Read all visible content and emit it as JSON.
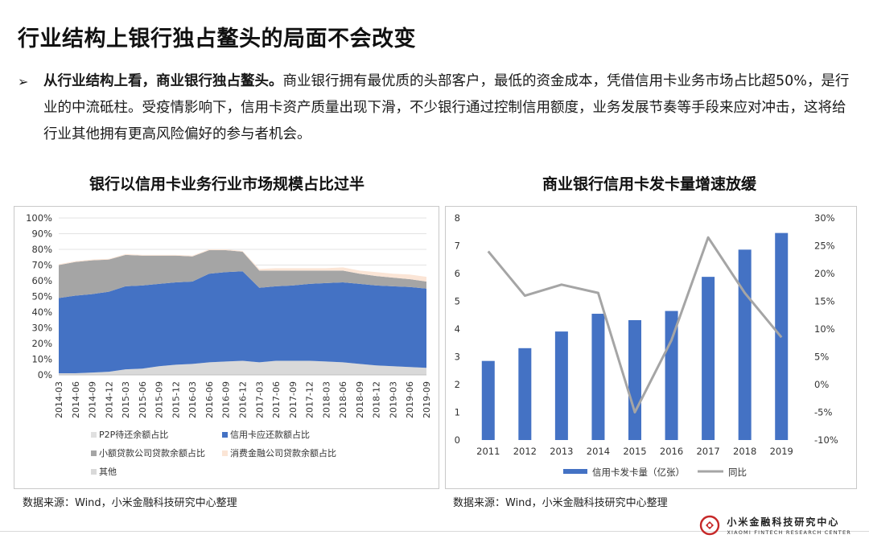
{
  "header": {
    "title": "行业结构上银行独占鳌头的局面不会改变"
  },
  "bullet": {
    "arrow": "➢",
    "lead": "从行业结构上看，商业银行独占鳌头。",
    "body": "商业银行拥有最优质的头部客户，最低的资金成本，凭借信用卡业务市场占比超50%，是行业的中流砥柱。受疫情影响下，信用卡资产质量出现下滑，不少银行通过控制信用额度，业务发展节奏等手段来应对冲击，这将给行业其他拥有更高风险偏好的参与者机会。"
  },
  "footer": {
    "brand_cn": "小米金融科技研究中心",
    "brand_en": "XIAOMI FINTECH RESEARCH CENTER"
  },
  "chart_data": [
    {
      "type": "area",
      "stacked": true,
      "title": "银行以信用卡业务行业市场规模占比过半",
      "source": "数据来源：Wind，小米金融科技研究中心整理",
      "categories": [
        "2014-03",
        "2014-06",
        "2014-09",
        "2014-12",
        "2015-03",
        "2015-06",
        "2015-09",
        "2015-12",
        "2016-03",
        "2016-06",
        "2016-09",
        "2016-12",
        "2017-03",
        "2017-06",
        "2017-09",
        "2017-12",
        "2018-03",
        "2018-06",
        "2018-09",
        "2018-12",
        "2019-03",
        "2019-06",
        "2019-09"
      ],
      "yticks": [
        "0%",
        "10%",
        "20%",
        "30%",
        "40%",
        "50%",
        "60%",
        "70%",
        "80%",
        "90%",
        "100%"
      ],
      "ylim": [
        0,
        100
      ],
      "grid": true,
      "legend_position": "bottom",
      "series": [
        {
          "name": "其他",
          "color": "#d9d9d9",
          "values": [
            1,
            1,
            1.5,
            2,
            3.5,
            4,
            5.5,
            6.5,
            7,
            8,
            8.5,
            9,
            8,
            9,
            9,
            9,
            8.5,
            8,
            7,
            6,
            5.5,
            5,
            4.5
          ]
        },
        {
          "name": "信用卡应还款额占比",
          "color": "#4472c4",
          "values": [
            48,
            49.5,
            50,
            51,
            53,
            53,
            52.5,
            52.5,
            52.5,
            56.5,
            57,
            57,
            47.5,
            47.5,
            48,
            49,
            50,
            51,
            51,
            51,
            51,
            51,
            50.5
          ]
        },
        {
          "name": "小额贷款公司贷款余额占比",
          "color": "#a5a5a5",
          "values": [
            21,
            21.5,
            21.5,
            20.5,
            20,
            19,
            18,
            17,
            16,
            15,
            14,
            12.5,
            11,
            10,
            9.5,
            8.5,
            8,
            7.5,
            6.5,
            6,
            5.5,
            5,
            4.5
          ]
        },
        {
          "name": "消费金融公司贷款余额占比",
          "color": "#fbe5d6",
          "values": [
            0.5,
            0.5,
            0.5,
            0.5,
            0.5,
            0.5,
            0.5,
            0.5,
            0.5,
            0.5,
            0.5,
            0.5,
            1,
            1.5,
            1.5,
            1.5,
            1.5,
            2,
            2,
            2.5,
            2.5,
            3,
            3
          ]
        },
        {
          "name": "P2P待还余额占比",
          "color": "#e0e0e0",
          "values": [
            0,
            0,
            0,
            0,
            0,
            0,
            0,
            0,
            0,
            0,
            0,
            0,
            0,
            0,
            0,
            0,
            0,
            0,
            0,
            0,
            0,
            0,
            0
          ]
        }
      ],
      "legend_order": [
        "P2P待还余额占比",
        "信用卡应还款额占比",
        "小额贷款公司贷款余额占比",
        "消费金融公司贷款余额占比",
        "其他"
      ]
    },
    {
      "type": "bar",
      "combo": true,
      "title": "商业银行信用卡发卡量增速放缓",
      "source": "数据来源：Wind，小米金融科技研究中心整理",
      "categories": [
        "2011",
        "2012",
        "2013",
        "2014",
        "2015",
        "2016",
        "2017",
        "2018",
        "2019"
      ],
      "ylim": [
        0,
        8
      ],
      "yticks": [
        "0",
        "1",
        "2",
        "3",
        "4",
        "5",
        "6",
        "7",
        "8"
      ],
      "y2lim": [
        -10,
        30
      ],
      "y2ticks": [
        "-10%",
        "-5%",
        "0%",
        "5%",
        "10%",
        "15%",
        "20%",
        "25%",
        "30%"
      ],
      "legend_position": "bottom",
      "series": [
        {
          "name": "信用卡发卡量（亿张）",
          "type": "bar",
          "color": "#4472c4",
          "values": [
            2.85,
            3.31,
            3.91,
            4.55,
            4.32,
            4.65,
            5.88,
            6.86,
            7.46
          ]
        },
        {
          "name": "同比",
          "type": "line",
          "axis": "right",
          "color": "#a5a5a5",
          "values": [
            24,
            16,
            18,
            16.5,
            -5,
            8,
            26.5,
            16.5,
            8.5
          ]
        }
      ]
    }
  ]
}
